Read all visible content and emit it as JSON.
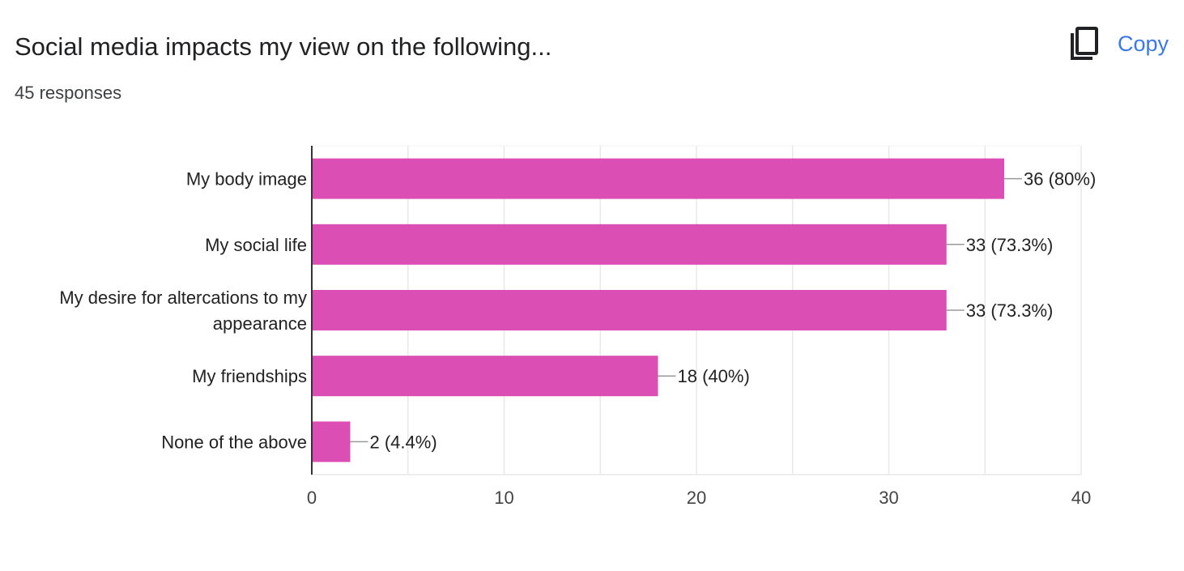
{
  "header": {
    "title": "Social media impacts my view on the following...",
    "responses": "45 responses",
    "copy_label": "Copy"
  },
  "colors": {
    "bar": "#db4fb4",
    "grid": "#e8e8e8",
    "axis": "#333333",
    "leader": "#999999",
    "text": "#222222",
    "tick": "#444444",
    "accent": "#3b78e7"
  },
  "chart_data": {
    "type": "bar",
    "orientation": "horizontal",
    "categories": [
      [
        "My body image"
      ],
      [
        "My social life"
      ],
      [
        "My desire for altercations to my",
        "appearance"
      ],
      [
        "My friendships"
      ],
      [
        "None of the above"
      ]
    ],
    "values": [
      36,
      33,
      33,
      18,
      2
    ],
    "value_labels": [
      "36 (80%)",
      "33 (73.3%)",
      "33 (73.3%)",
      "18 (40%)",
      "2 (4.4%)"
    ],
    "xlim": [
      0,
      40
    ],
    "xticks": [
      0,
      10,
      20,
      30,
      40
    ],
    "minor_gridlines": true,
    "legend": "none"
  }
}
